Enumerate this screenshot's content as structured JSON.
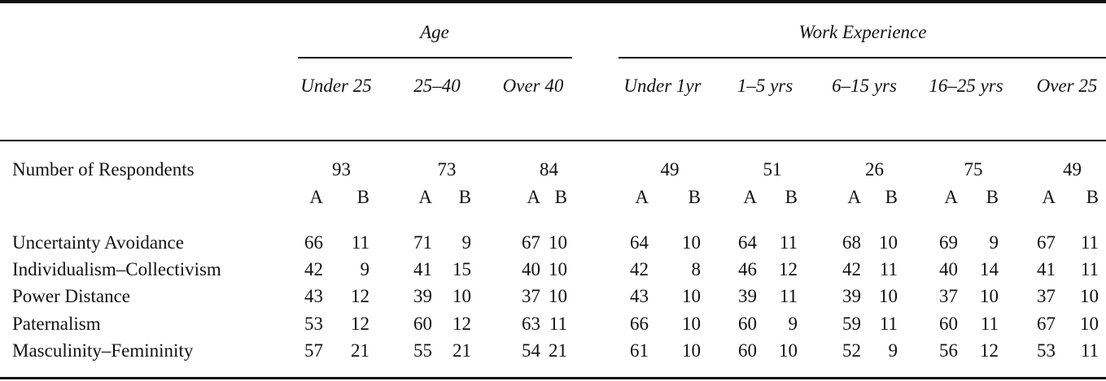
{
  "header": {
    "age_group_label": "Age",
    "work_group_label": "Work Experience",
    "columns": [
      {
        "label": "Under 25",
        "respondents": "93"
      },
      {
        "label": "25–40",
        "respondents": "73"
      },
      {
        "label": "Over 40",
        "respondents": "84"
      },
      {
        "label": "Under 1yr",
        "respondents": "49"
      },
      {
        "label": "1–5 yrs",
        "respondents": "51"
      },
      {
        "label": "6–15 yrs",
        "respondents": "26"
      },
      {
        "label": "16–25 yrs",
        "respondents": "75"
      },
      {
        "label": "Over 25",
        "respondents": "49"
      }
    ],
    "sub_a": "A",
    "sub_b": "B"
  },
  "respondents_label": "Number of Respondents",
  "rows": [
    {
      "label": "Uncertainty Avoidance",
      "values": [
        [
          "66",
          "11"
        ],
        [
          "71",
          "9"
        ],
        [
          "67",
          "10"
        ],
        [
          "64",
          "10"
        ],
        [
          "64",
          "11"
        ],
        [
          "68",
          "10"
        ],
        [
          "69",
          "9"
        ],
        [
          "67",
          "11"
        ]
      ]
    },
    {
      "label": "Individualism–Collectivism",
      "values": [
        [
          "42",
          "9"
        ],
        [
          "41",
          "15"
        ],
        [
          "40",
          "10"
        ],
        [
          "42",
          "8"
        ],
        [
          "46",
          "12"
        ],
        [
          "42",
          "11"
        ],
        [
          "40",
          "14"
        ],
        [
          "41",
          "11"
        ]
      ]
    },
    {
      "label": "Power Distance",
      "values": [
        [
          "43",
          "12"
        ],
        [
          "39",
          "10"
        ],
        [
          "37",
          "10"
        ],
        [
          "43",
          "10"
        ],
        [
          "39",
          "11"
        ],
        [
          "39",
          "10"
        ],
        [
          "37",
          "10"
        ],
        [
          "37",
          "10"
        ]
      ]
    },
    {
      "label": "Paternalism",
      "values": [
        [
          "53",
          "12"
        ],
        [
          "60",
          "12"
        ],
        [
          "63",
          "11"
        ],
        [
          "66",
          "10"
        ],
        [
          "60",
          "9"
        ],
        [
          "59",
          "11"
        ],
        [
          "60",
          "11"
        ],
        [
          "67",
          "10"
        ]
      ]
    },
    {
      "label": "Masculinity–Femininity",
      "values": [
        [
          "57",
          "21"
        ],
        [
          "55",
          "21"
        ],
        [
          "54",
          "21"
        ],
        [
          "61",
          "10"
        ],
        [
          "60",
          "10"
        ],
        [
          "52",
          "9"
        ],
        [
          "56",
          "12"
        ],
        [
          "53",
          "11"
        ]
      ]
    }
  ]
}
